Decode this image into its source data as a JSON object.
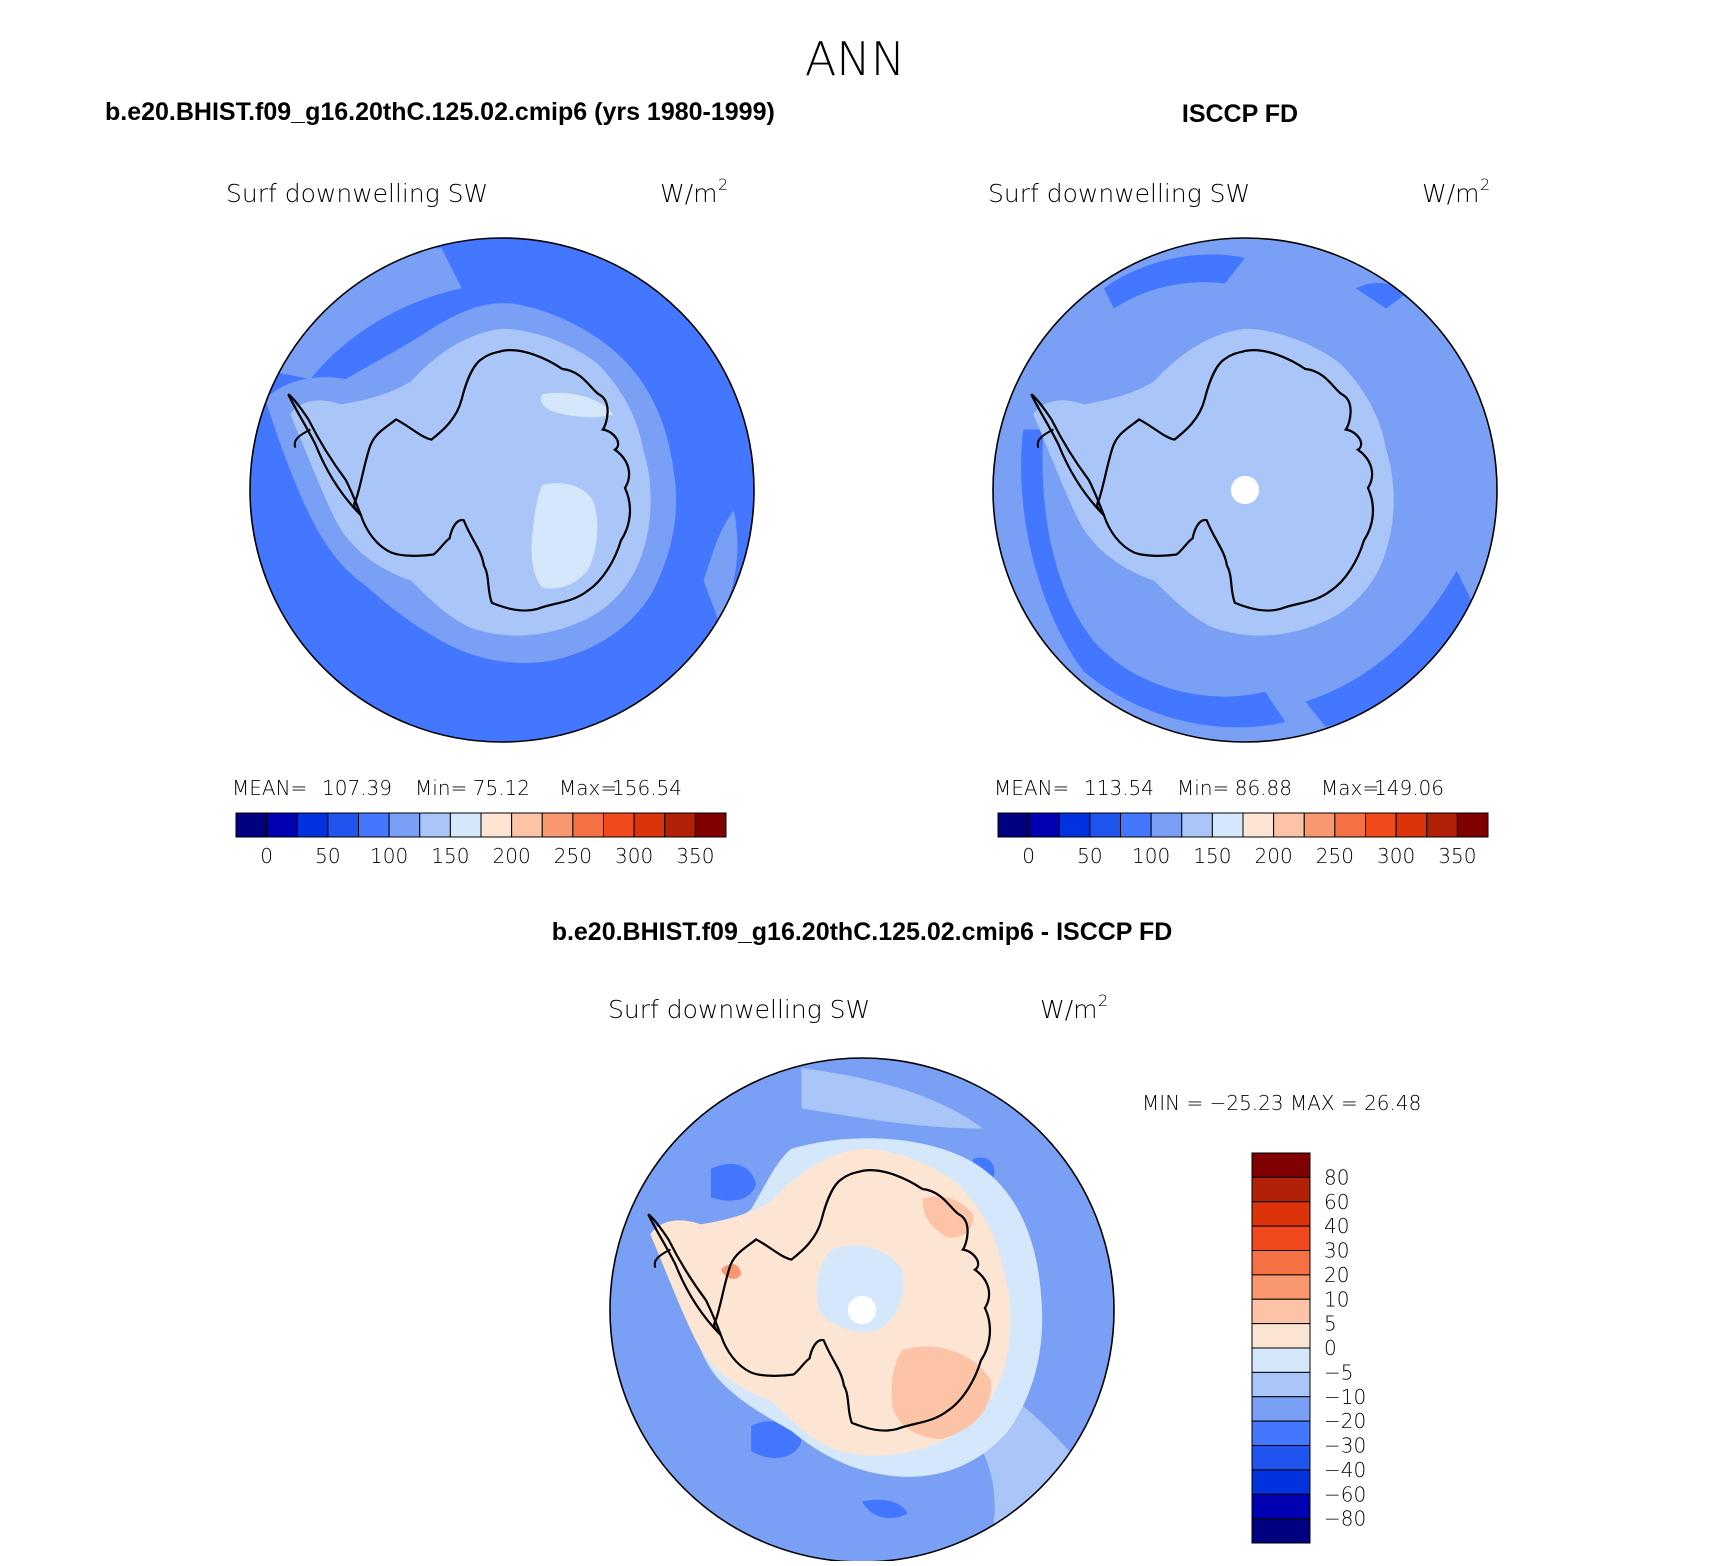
{
  "chart_data": [
    {
      "type": "contour-map",
      "projection": "south-polar-stereographic",
      "panel_title": "b.e20.BHIST.f09_g16.20thC.125.02.cmip6 (yrs 1980-1999)",
      "variable": "Surf downwelling SW",
      "units": "W/m",
      "units_superscript": "2",
      "stats": {
        "mean_label": "MEAN=",
        "mean": "107.39",
        "min_label": "Min=",
        "min": "75.12",
        "max_label": "Max=",
        "max": "156.54"
      },
      "colorbar": {
        "orientation": "horizontal",
        "ticks": [
          "0",
          "50",
          "100",
          "150",
          "200",
          "250",
          "300",
          "350"
        ],
        "colors": [
          "#000080",
          "#0000b3",
          "#0033dd",
          "#1f55ee",
          "#4477ff",
          "#7aa0f5",
          "#aac5f8",
          "#d5e8fb",
          "#fde5d3",
          "#fcc3a6",
          "#f9976e",
          "#f57042",
          "#f04a1c",
          "#dd330a",
          "#b32008",
          "#800000"
        ]
      }
    },
    {
      "type": "contour-map",
      "projection": "south-polar-stereographic",
      "panel_title": "ISCCP FD",
      "variable": "Surf downwelling SW",
      "units": "W/m",
      "units_superscript": "2",
      "stats": {
        "mean_label": "MEAN=",
        "mean": "113.54",
        "min_label": "Min=",
        "min": "86.88",
        "max_label": "Max=",
        "max": "149.06"
      },
      "colorbar": {
        "orientation": "horizontal",
        "ticks": [
          "0",
          "50",
          "100",
          "150",
          "200",
          "250",
          "300",
          "350"
        ],
        "colors": [
          "#000080",
          "#0000b3",
          "#0033dd",
          "#1f55ee",
          "#4477ff",
          "#7aa0f5",
          "#aac5f8",
          "#d5e8fb",
          "#fde5d3",
          "#fcc3a6",
          "#f9976e",
          "#f57042",
          "#f04a1c",
          "#dd330a",
          "#b32008",
          "#800000"
        ]
      }
    },
    {
      "type": "contour-map",
      "projection": "south-polar-stereographic",
      "panel_title": "b.e20.BHIST.f09_g16.20thC.125.02.cmip6 - ISCCP FD",
      "variable": "Surf downwelling SW",
      "units": "W/m",
      "units_superscript": "2",
      "stats_text": "MIN = −25.23 MAX =  26.48",
      "colorbar": {
        "orientation": "vertical",
        "ticks": [
          "80",
          "60",
          "40",
          "30",
          "20",
          "10",
          "5",
          "0",
          "−5",
          "−10",
          "−20",
          "−30",
          "−40",
          "−60",
          "−80"
        ],
        "colors": [
          "#800000",
          "#b32008",
          "#dd330a",
          "#f04a1c",
          "#f57042",
          "#f9976e",
          "#fcc3a6",
          "#fde5d3",
          "#d5e8fb",
          "#aac5f8",
          "#7aa0f5",
          "#4477ff",
          "#1f55ee",
          "#0033dd",
          "#0000b3",
          "#000080"
        ]
      }
    }
  ],
  "figure_title": "ANN",
  "palette": {
    "ocean_a": "#4477ff",
    "ocean_b": "#7aa0f5",
    "pale_blue": "#aac5f8",
    "very_pale_blue": "#d5e8fb",
    "pale_orange": "#fde5d3",
    "light_orange": "#fcc3a6",
    "mid_orange": "#f9976e",
    "coast": "#000000",
    "missing": "#ffffff"
  }
}
